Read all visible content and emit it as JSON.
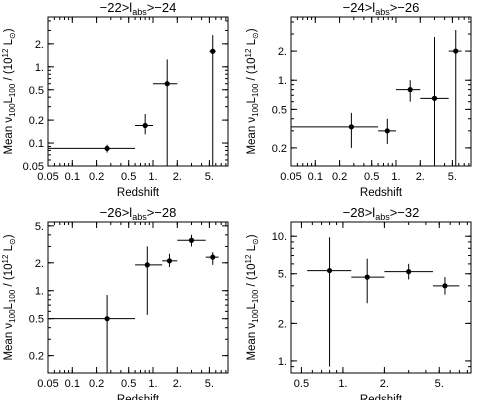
{
  "chart_data": [
    {
      "type": "scatter",
      "title_parts": [
        "−22>l",
        "abs",
        ">−24"
      ],
      "xlabel": "Redshift",
      "ylabel_parts": [
        "Mean ν",
        "100",
        "L",
        "100",
        " / (10",
        "12",
        " L",
        "⊙",
        ")"
      ],
      "xscale": "log",
      "yscale": "log",
      "xlim": [
        0.05,
        8.5
      ],
      "ylim": [
        0.05,
        4.5
      ],
      "xticks": [
        0.05,
        0.1,
        0.2,
        0.5,
        1,
        2,
        5
      ],
      "xticklabels": [
        "0.05",
        "0.1",
        "0.2",
        "0.5",
        "1.",
        "2.",
        "5."
      ],
      "yticks": [
        0.05,
        0.1,
        0.2,
        0.5,
        1,
        2
      ],
      "yticklabels": [
        "0.05",
        "0.1",
        "0.2",
        "0.5",
        "1.",
        "2."
      ],
      "points": [
        {
          "x": 0.27,
          "xerr": [
            0.05,
            0.6
          ],
          "y": 0.085,
          "yerr": [
            0.075,
            0.095
          ]
        },
        {
          "x": 0.8,
          "xerr": [
            0.6,
            1.0
          ],
          "y": 0.17,
          "yerr": [
            0.13,
            0.24
          ]
        },
        {
          "x": 1.5,
          "xerr": [
            1.0,
            2.0
          ],
          "y": 0.6,
          "yerr": [
            0.05,
            1.25
          ]
        },
        {
          "x": 5.5,
          "xerr": [
            5.0,
            6.0
          ],
          "y": 1.6,
          "yerr": [
            0.05,
            2.6
          ]
        }
      ]
    },
    {
      "type": "scatter",
      "title_parts": [
        "−24>l",
        "abs",
        ">−26"
      ],
      "xlabel": "Redshift",
      "ylabel_parts": [
        "Mean ν",
        "100",
        "L",
        "100",
        " / (10",
        "12",
        " L",
        "⊙",
        ")"
      ],
      "xscale": "log",
      "yscale": "log",
      "xlim": [
        0.05,
        8.5
      ],
      "ylim": [
        0.13,
        4.5
      ],
      "xticks": [
        0.05,
        0.1,
        0.2,
        0.5,
        1,
        2,
        5
      ],
      "xticklabels": [
        "0.05",
        "0.1",
        "0.2",
        "0.5",
        "1.",
        "2.",
        "5."
      ],
      "yticks": [
        0.2,
        0.5,
        1,
        2
      ],
      "yticklabels": [
        "0.2",
        "0.5",
        "1.",
        "2."
      ],
      "points": [
        {
          "x": 0.28,
          "xerr": [
            0.05,
            0.6
          ],
          "y": 0.33,
          "yerr": [
            0.2,
            0.46
          ]
        },
        {
          "x": 0.78,
          "xerr": [
            0.6,
            1.0
          ],
          "y": 0.3,
          "yerr": [
            0.22,
            0.4
          ]
        },
        {
          "x": 1.5,
          "xerr": [
            1.0,
            2.0
          ],
          "y": 0.8,
          "yerr": [
            0.6,
            1.0
          ]
        },
        {
          "x": 3.0,
          "xerr": [
            2.0,
            4.5
          ],
          "y": 0.65,
          "yerr": [
            0.13,
            2.8
          ]
        },
        {
          "x": 5.5,
          "xerr": [
            4.5,
            6.5
          ],
          "y": 2.0,
          "yerr": [
            0.13,
            3.3
          ]
        }
      ]
    },
    {
      "type": "scatter",
      "title_parts": [
        "−26>l",
        "abs",
        ">−28"
      ],
      "xlabel": "Redshift",
      "ylabel_parts": [
        "Mean ν",
        "100",
        "L",
        "100",
        " / (10",
        "12",
        " L",
        "⊙",
        ")"
      ],
      "xscale": "log",
      "yscale": "log",
      "xlim": [
        0.05,
        8.5
      ],
      "ylim": [
        0.13,
        5.5
      ],
      "xticks": [
        0.05,
        0.1,
        0.2,
        0.5,
        1,
        2,
        5
      ],
      "xticklabels": [
        "0.05",
        "0.1",
        "0.2",
        "0.5",
        "1.",
        "2.",
        "5."
      ],
      "yticks": [
        0.2,
        0.5,
        1,
        2,
        5
      ],
      "yticklabels": [
        "0.2",
        "0.5",
        "1.",
        "2.",
        "5."
      ],
      "points": [
        {
          "x": 0.27,
          "xerr": [
            0.05,
            0.6
          ],
          "y": 0.5,
          "yerr": [
            0.13,
            0.9
          ]
        },
        {
          "x": 0.85,
          "xerr": [
            0.6,
            1.3
          ],
          "y": 1.9,
          "yerr": [
            0.55,
            3.0
          ]
        },
        {
          "x": 1.6,
          "xerr": [
            1.3,
            2.0
          ],
          "y": 2.1,
          "yerr": [
            1.8,
            2.5
          ]
        },
        {
          "x": 3.0,
          "xerr": [
            2.0,
            4.5
          ],
          "y": 3.5,
          "yerr": [
            3.0,
            4.0
          ]
        },
        {
          "x": 5.5,
          "xerr": [
            4.5,
            6.5
          ],
          "y": 2.3,
          "yerr": [
            1.9,
            2.6
          ]
        }
      ]
    },
    {
      "type": "scatter",
      "title_parts": [
        "−28>l",
        "abs",
        ">−32"
      ],
      "xlabel": "Redshift",
      "ylabel_parts": [
        "Mean ν",
        "100",
        "L",
        "100",
        " / (10",
        "12",
        " L",
        "⊙",
        ")"
      ],
      "xscale": "log",
      "yscale": "log",
      "xlim": [
        0.42,
        8.5
      ],
      "ylim": [
        0.8,
        13
      ],
      "xticks": [
        0.5,
        1,
        2,
        5
      ],
      "xticklabels": [
        "0.5",
        "1.",
        "2.",
        "5."
      ],
      "yticks": [
        1,
        2,
        5,
        10
      ],
      "yticklabels": [
        "1.",
        "2.",
        "5.",
        "10."
      ],
      "points": [
        {
          "x": 0.8,
          "xerr": [
            0.55,
            1.15
          ],
          "y": 5.3,
          "yerr": [
            0.9,
            9.8
          ]
        },
        {
          "x": 1.5,
          "xerr": [
            1.15,
            2.0
          ],
          "y": 4.7,
          "yerr": [
            2.9,
            6.6
          ]
        },
        {
          "x": 3.0,
          "xerr": [
            2.0,
            4.5
          ],
          "y": 5.2,
          "yerr": [
            4.5,
            6.0
          ]
        },
        {
          "x": 5.5,
          "xerr": [
            4.5,
            7.0
          ],
          "y": 4.0,
          "yerr": [
            3.4,
            4.7
          ]
        }
      ]
    }
  ]
}
